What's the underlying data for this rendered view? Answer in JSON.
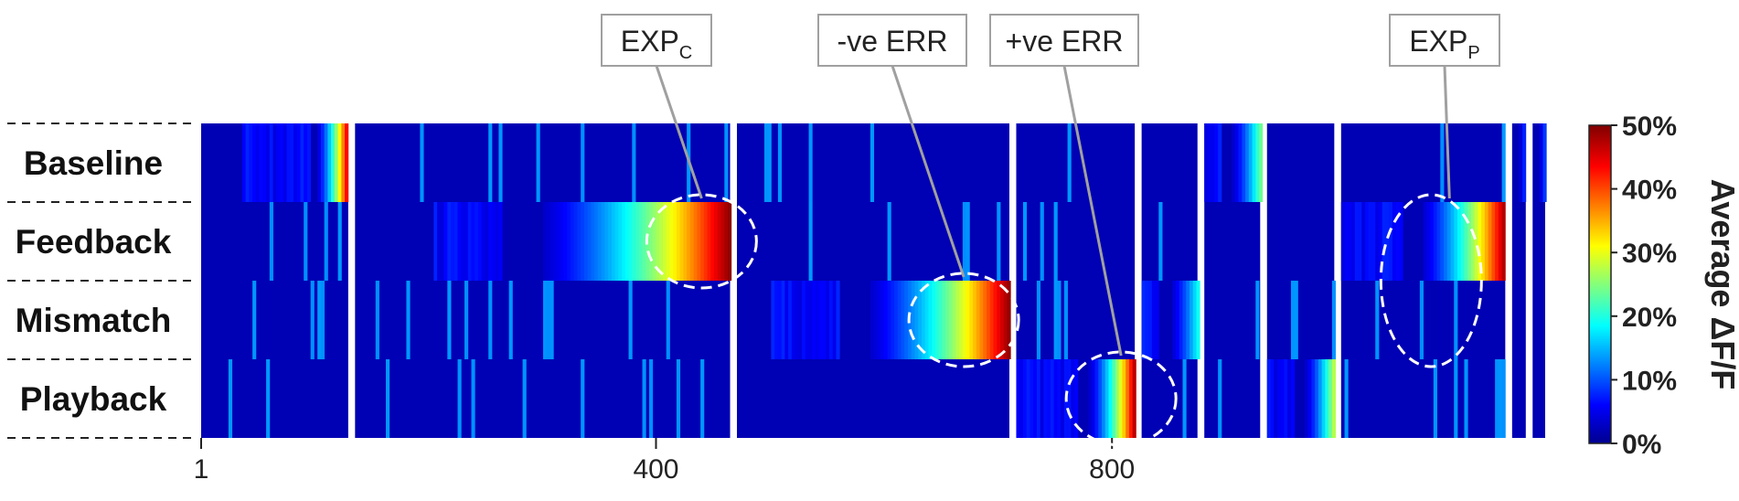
{
  "chart_data": {
    "type": "heatmap",
    "rows": [
      "Baseline",
      "Feedback",
      "Mismatch",
      "Playback"
    ],
    "x_ticks": [
      {
        "value": 1,
        "label": "1"
      },
      {
        "value": 400,
        "label": "400"
      },
      {
        "value": 800,
        "label": "800"
      }
    ],
    "x_range": [
      1,
      1180
    ],
    "groups": [
      {
        "start": 1,
        "end": 130,
        "peak_row": 0,
        "peak": 50,
        "onset": 95
      },
      {
        "start": 136,
        "end": 465,
        "peak_row": 1,
        "peak": 50,
        "onset": 265
      },
      {
        "start": 471,
        "end": 710,
        "peak_row": 2,
        "peak": 50,
        "onset": 560
      },
      {
        "start": 716,
        "end": 820,
        "peak_row": 3,
        "peak": 50,
        "onset": 770
      },
      {
        "start": 826,
        "end": 875,
        "peak_row": 2,
        "peak": 20,
        "onset": 840
      },
      {
        "start": 881,
        "end": 930,
        "peak_row": 0,
        "peak": 25,
        "onset": 895
      },
      {
        "start": 936,
        "end": 995,
        "peak_row": 3,
        "peak": 30,
        "onset": 960
      },
      {
        "start": 1001,
        "end": 1145,
        "peak_row": 1,
        "peak": 50,
        "onset": 1055
      },
      {
        "start": 1151,
        "end": 1163,
        "peak_row": 0,
        "peak": 12,
        "onset": 1151
      },
      {
        "start": 1169,
        "end": 1180,
        "peak_row": 0,
        "peak": 12,
        "onset": 1169
      }
    ],
    "annotations": [
      {
        "main": "EXP",
        "sub": "C",
        "x": 440,
        "row_from": 1,
        "row_to": 1
      },
      {
        "main": "-ve ERR",
        "sub": "",
        "x": 670,
        "row_from": 2,
        "row_to": 2
      },
      {
        "main": "+ve ERR",
        "sub": "",
        "x": 808,
        "row_from": 3,
        "row_to": 3
      },
      {
        "main": "EXP",
        "sub": "P",
        "x": 1080,
        "row_from": 1,
        "row_to": 2
      }
    ],
    "colorbar": {
      "label": "Average ΔF/F",
      "ticks": [
        "0%",
        "10%",
        "20%",
        "30%",
        "40%",
        "50%"
      ],
      "range": [
        0,
        50
      ],
      "colormap": "jet"
    }
  }
}
